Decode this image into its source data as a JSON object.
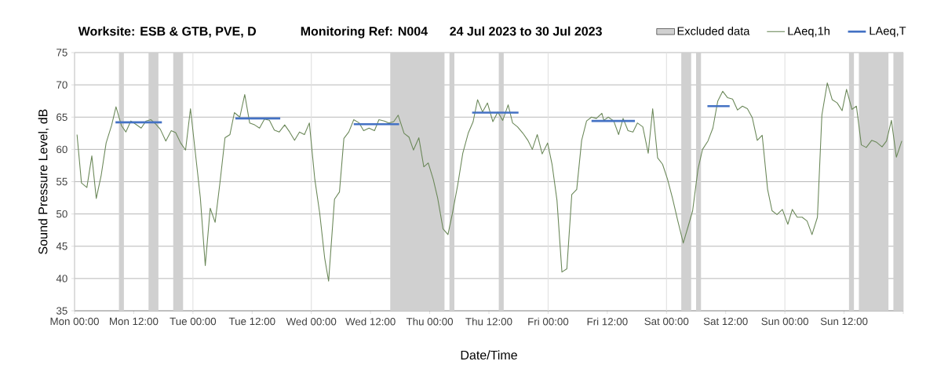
{
  "chart_data": {
    "type": "line",
    "title": "Worksite: ESB & GTB, PVE, D",
    "subtitle": "Monitoring Ref: N004",
    "annotations": [
      "24 Jul 2023 to 30 Jul 2023"
    ],
    "xlabel": "Date/Time",
    "ylabel": "Sound Pressure Level, dB",
    "xlim": [
      "2023-07-24T00:00",
      "2023-07-31T00:00"
    ],
    "ylim": [
      35,
      75
    ],
    "yticks": [
      35,
      40,
      45,
      50,
      55,
      60,
      65,
      70,
      75
    ],
    "xticks": [
      {
        "value": "2023-07-24T00:00",
        "label": "Mon 00:00"
      },
      {
        "value": "2023-07-24T12:00",
        "label": "Mon 12:00"
      },
      {
        "value": "2023-07-25T00:00",
        "label": "Tue 00:00"
      },
      {
        "value": "2023-07-25T12:00",
        "label": "Tue 12:00"
      },
      {
        "value": "2023-07-26T00:00",
        "label": "Wed 00:00"
      },
      {
        "value": "2023-07-26T12:00",
        "label": "Wed 12:00"
      },
      {
        "value": "2023-07-27T00:00",
        "label": "Thu 00:00"
      },
      {
        "value": "2023-07-27T12:00",
        "label": "Thu 12:00"
      },
      {
        "value": "2023-07-28T00:00",
        "label": "Fri 00:00"
      },
      {
        "value": "2023-07-28T12:00",
        "label": "Fri 12:00"
      },
      {
        "value": "2023-07-29T00:00",
        "label": "Sat 00:00"
      },
      {
        "value": "2023-07-29T12:00",
        "label": "Sat 12:00"
      },
      {
        "value": "2023-07-30T00:00",
        "label": "Sun 00:00"
      },
      {
        "value": "2023-07-30T12:00",
        "label": "Sun 12:00"
      },
      {
        "value": "2023-07-31T00:00",
        "label": null
      }
    ],
    "grid": true,
    "legend": "top right",
    "line_style": "solid",
    "marker": "none",
    "bands": [
      {
        "axis": "x",
        "from": "2023-07-24T09:00",
        "to": "2023-07-24T10:00",
        "color": "#d0d0d0",
        "label": "Excluded data"
      },
      {
        "axis": "x",
        "from": "2023-07-24T15:00",
        "to": "2023-07-24T17:00",
        "color": "#d0d0d0"
      },
      {
        "axis": "x",
        "from": "2023-07-24T20:00",
        "to": "2023-07-24T22:00",
        "color": "#d0d0d0"
      },
      {
        "axis": "x",
        "from": "2023-07-26T16:00",
        "to": "2023-07-27T03:00",
        "color": "#d0d0d0"
      },
      {
        "axis": "x",
        "from": "2023-07-27T04:00",
        "to": "2023-07-27T05:00",
        "color": "#d0d0d0"
      },
      {
        "axis": "x",
        "from": "2023-07-27T14:00",
        "to": "2023-07-27T15:00",
        "color": "#d0d0d0"
      },
      {
        "axis": "x",
        "from": "2023-07-29T03:00",
        "to": "2023-07-29T05:00",
        "color": "#d0d0d0"
      },
      {
        "axis": "x",
        "from": "2023-07-29T06:00",
        "to": "2023-07-29T07:00",
        "color": "#d0d0d0"
      },
      {
        "axis": "x",
        "from": "2023-07-30T13:00",
        "to": "2023-07-30T14:00",
        "color": "#d0d0d0"
      },
      {
        "axis": "x",
        "from": "2023-07-30T15:00",
        "to": "2023-07-30T21:00",
        "color": "#d0d0d0"
      },
      {
        "axis": "x",
        "from": "2023-07-30T22:00",
        "to": "2023-07-31T00:00",
        "color": "#d0d0d0"
      }
    ],
    "series": [
      {
        "name": "LAeq,1h",
        "color": "#6a8758",
        "x": [
          "2023-07-24T00:30",
          "2023-07-24T01:24",
          "2023-07-24T02:30",
          "2023-07-24T03:30",
          "2023-07-24T04:24",
          "2023-07-24T05:24",
          "2023-07-24T06:24",
          "2023-07-24T07:30",
          "2023-07-24T08:24",
          "2023-07-24T09:30",
          "2023-07-24T10:24",
          "2023-07-24T11:24",
          "2023-07-24T12:24",
          "2023-07-24T13:30",
          "2023-07-24T14:30",
          "2023-07-24T15:30",
          "2023-07-24T16:30",
          "2023-07-24T17:24",
          "2023-07-24T18:30",
          "2023-07-24T19:36",
          "2023-07-24T20:30",
          "2023-07-24T21:30",
          "2023-07-24T22:30",
          "2023-07-24T23:30",
          "2023-07-25T00:30",
          "2023-07-25T01:30",
          "2023-07-25T02:30",
          "2023-07-25T03:30",
          "2023-07-25T04:30",
          "2023-07-25T05:30",
          "2023-07-25T06:30",
          "2023-07-25T07:30",
          "2023-07-25T08:24",
          "2023-07-25T09:30",
          "2023-07-25T10:30",
          "2023-07-25T11:30",
          "2023-07-25T12:30",
          "2023-07-25T13:30",
          "2023-07-25T14:30",
          "2023-07-25T15:30",
          "2023-07-25T16:30",
          "2023-07-25T17:30",
          "2023-07-25T18:36",
          "2023-07-25T19:36",
          "2023-07-25T20:36",
          "2023-07-25T21:36",
          "2023-07-25T22:36",
          "2023-07-25T23:36",
          "2023-07-26T00:42",
          "2023-07-26T01:42",
          "2023-07-26T02:42",
          "2023-07-26T03:30",
          "2023-07-26T04:42",
          "2023-07-26T05:42",
          "2023-07-26T06:36",
          "2023-07-26T07:36",
          "2023-07-26T08:36",
          "2023-07-26T09:42",
          "2023-07-26T10:36",
          "2023-07-26T11:42",
          "2023-07-26T12:48",
          "2023-07-26T13:42",
          "2023-07-26T14:48",
          "2023-07-26T15:42",
          "2023-07-26T16:42",
          "2023-07-26T17:36",
          "2023-07-26T18:48",
          "2023-07-26T19:48",
          "2023-07-26T20:42",
          "2023-07-26T21:48",
          "2023-07-26T22:48",
          "2023-07-26T23:42",
          "2023-07-27T00:42",
          "2023-07-27T01:36",
          "2023-07-27T02:42",
          "2023-07-27T03:42",
          "2023-07-27T04:36",
          "2023-07-27T05:42",
          "2023-07-27T06:42",
          "2023-07-27T07:48",
          "2023-07-27T08:48",
          "2023-07-27T09:42",
          "2023-07-27T10:42",
          "2023-07-27T11:42",
          "2023-07-27T12:48",
          "2023-07-27T13:48",
          "2023-07-27T14:48",
          "2023-07-27T15:54",
          "2023-07-27T16:48",
          "2023-07-27T17:48",
          "2023-07-27T18:54",
          "2023-07-27T19:54",
          "2023-07-27T20:48",
          "2023-07-27T21:48",
          "2023-07-27T22:48",
          "2023-07-27T23:54",
          "2023-07-28T00:48",
          "2023-07-28T01:48",
          "2023-07-28T02:48",
          "2023-07-28T03:48",
          "2023-07-28T04:48",
          "2023-07-28T05:48",
          "2023-07-28T06:48",
          "2023-07-28T07:48",
          "2023-07-28T08:48",
          "2023-07-28T09:48",
          "2023-07-28T10:54",
          "2023-07-28T11:18",
          "2023-07-28T12:12",
          "2023-07-28T13:18",
          "2023-07-28T14:18",
          "2023-07-28T15:12",
          "2023-07-28T16:12",
          "2023-07-28T17:12",
          "2023-07-28T18:06",
          "2023-07-28T19:12",
          "2023-07-28T20:18",
          "2023-07-28T21:12",
          "2023-07-28T22:12",
          "2023-07-28T23:12",
          "2023-07-29T00:12",
          "2023-07-29T01:12",
          "2023-07-29T02:18",
          "2023-07-29T03:24",
          "2023-07-29T04:24",
          "2023-07-29T05:18",
          "2023-07-29T06:24",
          "2023-07-29T07:18",
          "2023-07-29T08:24",
          "2023-07-29T09:24",
          "2023-07-29T10:24",
          "2023-07-29T11:24",
          "2023-07-29T12:24",
          "2023-07-29T13:24",
          "2023-07-29T14:24",
          "2023-07-29T15:24",
          "2023-07-29T16:24",
          "2023-07-29T17:24",
          "2023-07-29T18:24",
          "2023-07-29T19:24",
          "2023-07-29T20:30",
          "2023-07-29T21:24",
          "2023-07-29T22:24",
          "2023-07-29T23:30",
          "2023-07-30T00:36",
          "2023-07-30T01:30",
          "2023-07-30T02:30",
          "2023-07-30T03:30",
          "2023-07-30T04:30",
          "2023-07-30T05:30",
          "2023-07-30T06:36",
          "2023-07-30T07:30",
          "2023-07-30T08:36",
          "2023-07-30T09:36",
          "2023-07-30T10:36",
          "2023-07-30T11:36",
          "2023-07-30T12:30",
          "2023-07-30T13:36",
          "2023-07-30T14:30",
          "2023-07-30T15:30",
          "2023-07-30T16:30",
          "2023-07-30T17:36",
          "2023-07-30T18:36",
          "2023-07-30T19:42",
          "2023-07-30T20:36",
          "2023-07-30T21:36",
          "2023-07-30T22:36",
          "2023-07-30T23:42"
        ],
        "values": [
          62.3,
          54.8,
          54.1,
          59.0,
          52.4,
          56.0,
          61.0,
          63.7,
          66.6,
          63.7,
          62.7,
          64.4,
          63.9,
          63.3,
          64.4,
          64.6,
          63.9,
          63.1,
          61.3,
          62.9,
          62.6,
          61.0,
          59.9,
          66.3,
          59.4,
          52.5,
          42.0,
          50.9,
          48.7,
          55.0,
          61.8,
          62.3,
          65.7,
          65.0,
          68.5,
          64.1,
          63.8,
          63.3,
          64.7,
          64.5,
          63.0,
          62.7,
          63.8,
          62.7,
          61.4,
          62.7,
          62.3,
          64.1,
          55.4,
          50.1,
          43.2,
          39.6,
          52.3,
          53.4,
          61.7,
          62.7,
          64.6,
          64.1,
          62.9,
          63.3,
          62.9,
          64.6,
          64.4,
          64.1,
          64.3,
          65.3,
          62.5,
          61.9,
          59.9,
          61.8,
          57.3,
          57.9,
          55.4,
          52.5,
          47.7,
          46.8,
          50.1,
          54.6,
          59.4,
          62.5,
          64.3,
          67.7,
          65.8,
          67.2,
          64.3,
          65.8,
          64.5,
          66.9,
          64.1,
          63.5,
          62.5,
          61.4,
          60.0,
          62.3,
          59.3,
          61.0,
          57.7,
          52.1,
          41.0,
          41.5,
          53.0,
          53.8,
          61.4,
          64.4,
          65.0,
          64.8,
          65.6,
          64.5,
          65.0,
          64.4,
          62.3,
          64.8,
          62.9,
          62.7,
          64.1,
          63.5,
          59.4,
          66.3,
          58.7,
          57.7,
          55.4,
          52.5,
          48.9,
          45.5,
          48.1,
          50.5,
          57.0,
          60.0,
          61.3,
          63.3,
          67.5,
          69.0,
          68.0,
          67.8,
          66.1,
          66.7,
          66.3,
          64.9,
          61.4,
          62.2,
          53.8,
          50.5,
          49.9,
          50.7,
          48.4,
          50.7,
          49.5,
          49.5,
          48.9,
          46.8,
          49.5,
          65.3,
          70.3,
          67.7,
          67.2,
          66.0,
          69.3,
          66.2,
          66.7,
          60.7,
          60.3,
          61.4,
          61.1,
          60.4,
          61.3,
          64.5,
          58.8,
          61.3
        ]
      },
      {
        "name": "LAeq,T",
        "color": "#4472c4",
        "x": [
          "2023-07-24T08:18",
          "2023-07-24T17:42",
          "2023-07-25T01:00",
          "2023-07-25T08:36",
          "2023-07-25T17:42",
          "2023-07-26T02:00",
          "2023-07-26T08:36",
          "2023-07-26T17:48",
          "2023-07-27T03:00",
          "2023-07-27T08:36",
          "2023-07-27T18:00",
          "2023-07-28T04:00",
          "2023-07-28T08:48",
          "2023-07-28T17:36",
          "2023-07-29T00:00",
          "2023-07-29T08:18",
          "2023-07-29T12:48"
        ],
        "values": [
          64.2,
          64.2,
          null,
          64.8,
          64.8,
          null,
          63.9,
          63.9,
          null,
          65.7,
          65.7,
          null,
          64.4,
          64.4,
          null,
          66.7,
          66.7
        ]
      }
    ]
  }
}
